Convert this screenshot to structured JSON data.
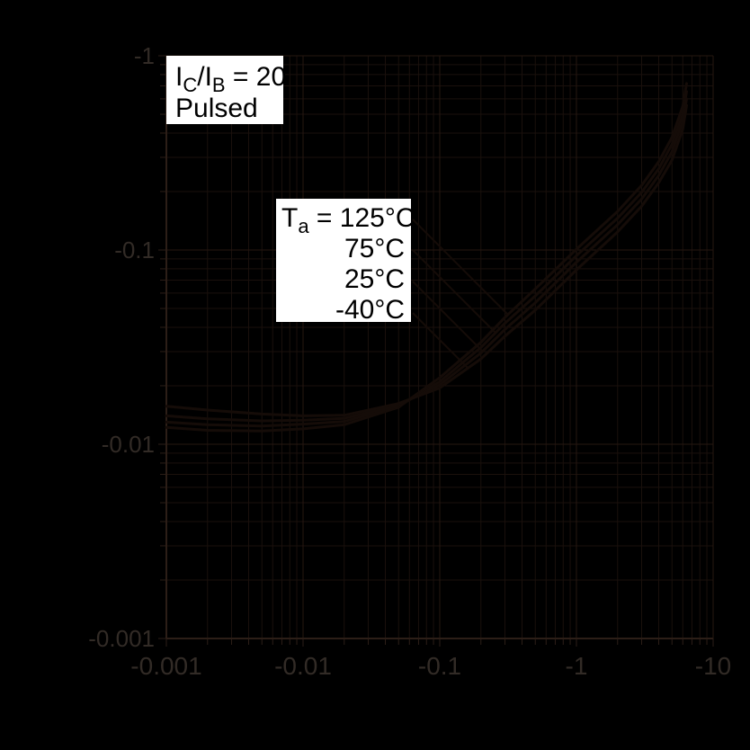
{
  "colors": {
    "background": "#000000",
    "grid_minor": "#1a100c",
    "grid_major": "#261711",
    "axis_frame": "#2c1e17",
    "tick_text": "#322b26",
    "curve": "#150c08",
    "box_bg": "#ffffff",
    "box_text": "#000000"
  },
  "condition_box": {
    "i1": "I",
    "sub1": "C",
    "mid": "/I",
    "sub2": "B",
    "eq": " = 20",
    "line2": "Pulsed"
  },
  "legend": {
    "t": "T",
    "t_sub": "a",
    "eq": " = "
  },
  "chart_data": {
    "type": "line",
    "title": "",
    "xlabel": "",
    "ylabel": "",
    "condition": "IC/IB = 20, Pulsed",
    "x_scale": "log (negative values, magnitude increases rightward)",
    "y_scale": "log (negative values, magnitude increases upward)",
    "x_range": [
      -0.001,
      -10
    ],
    "y_range": [
      -0.001,
      -1
    ],
    "x_ticks": [
      "-0.001",
      "-0.01",
      "-0.1",
      "-1",
      "-10"
    ],
    "y_ticks": [
      "-1",
      "-0.1",
      "-0.01",
      "-0.001"
    ],
    "grid": "full log grid, major and minor lines",
    "legend_position": "inset white box with leader lines to curves",
    "series": [
      {
        "name": "125°C",
        "points": [
          [
            -0.001,
            -0.0122
          ],
          [
            -0.002,
            -0.0118
          ],
          [
            -0.005,
            -0.0117
          ],
          [
            -0.01,
            -0.012
          ],
          [
            -0.02,
            -0.0126
          ],
          [
            -0.05,
            -0.0155
          ],
          [
            -0.1,
            -0.022
          ],
          [
            -0.2,
            -0.0335
          ],
          [
            -0.3,
            -0.045
          ],
          [
            -0.5,
            -0.063
          ],
          [
            -1,
            -0.101
          ],
          [
            -2,
            -0.158
          ],
          [
            -3,
            -0.215
          ],
          [
            -4,
            -0.285
          ],
          [
            -5,
            -0.38
          ],
          [
            -6,
            -0.55
          ],
          [
            -6.4,
            -0.72
          ]
        ]
      },
      {
        "name": "75°C",
        "points": [
          [
            -0.001,
            -0.013
          ],
          [
            -0.002,
            -0.0126
          ],
          [
            -0.005,
            -0.0124
          ],
          [
            -0.01,
            -0.0127
          ],
          [
            -0.02,
            -0.0131
          ],
          [
            -0.05,
            -0.0157
          ],
          [
            -0.1,
            -0.021
          ],
          [
            -0.2,
            -0.0315
          ],
          [
            -0.3,
            -0.042
          ],
          [
            -0.5,
            -0.058
          ],
          [
            -1,
            -0.0935
          ],
          [
            -2,
            -0.146
          ],
          [
            -3,
            -0.198
          ],
          [
            -4,
            -0.262
          ],
          [
            -5,
            -0.35
          ],
          [
            -6,
            -0.5
          ],
          [
            -6.4,
            -0.655
          ]
        ]
      },
      {
        "name": "25°C",
        "points": [
          [
            -0.001,
            -0.014
          ],
          [
            -0.002,
            -0.0135
          ],
          [
            -0.005,
            -0.0132
          ],
          [
            -0.01,
            -0.0133
          ],
          [
            -0.02,
            -0.0136
          ],
          [
            -0.05,
            -0.0159
          ],
          [
            -0.1,
            -0.0202
          ],
          [
            -0.2,
            -0.0295
          ],
          [
            -0.3,
            -0.039
          ],
          [
            -0.5,
            -0.0535
          ],
          [
            -1,
            -0.0865
          ],
          [
            -2,
            -0.135
          ],
          [
            -3,
            -0.183
          ],
          [
            -4,
            -0.242
          ],
          [
            -5,
            -0.32
          ],
          [
            -6,
            -0.46
          ],
          [
            -6.4,
            -0.6
          ]
        ]
      },
      {
        "name": "-40°C",
        "points": [
          [
            -0.001,
            -0.0157
          ],
          [
            -0.002,
            -0.015
          ],
          [
            -0.005,
            -0.0143
          ],
          [
            -0.01,
            -0.014
          ],
          [
            -0.02,
            -0.0141
          ],
          [
            -0.05,
            -0.0162
          ],
          [
            -0.1,
            -0.0195
          ],
          [
            -0.2,
            -0.0275
          ],
          [
            -0.3,
            -0.036
          ],
          [
            -0.5,
            -0.049
          ],
          [
            -1,
            -0.079
          ],
          [
            -2,
            -0.124
          ],
          [
            -3,
            -0.168
          ],
          [
            -4,
            -0.222
          ],
          [
            -5,
            -0.29
          ],
          [
            -6,
            -0.42
          ],
          [
            -6.4,
            -0.555
          ]
        ]
      }
    ]
  }
}
